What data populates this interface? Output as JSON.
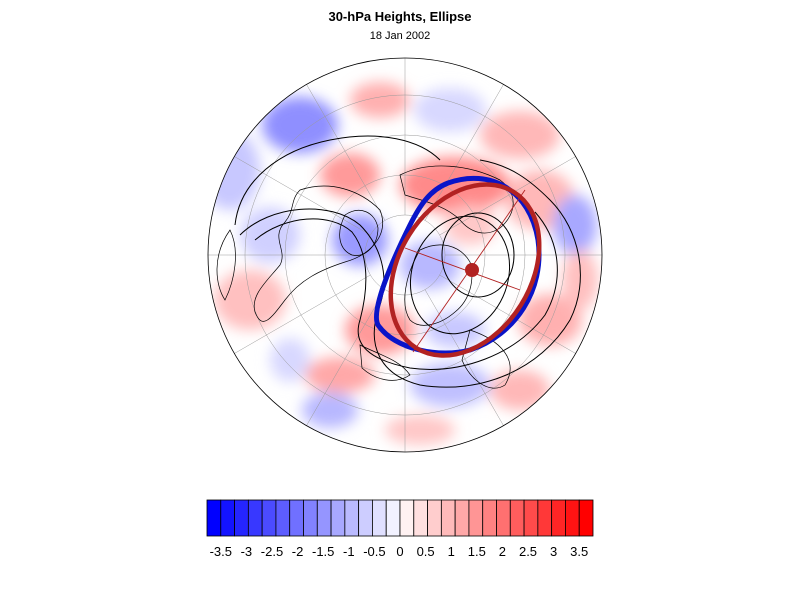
{
  "figure": {
    "title": "30-hPa Heights, Ellipse",
    "subtitle": "18 Jan 2002"
  },
  "map": {
    "projection": "north-polar-stereographic",
    "field_colors": {
      "negative": "#0000ff",
      "neutral": "#ffffff",
      "positive": "#ff0000"
    },
    "ellipse_colors": {
      "blue": "#0a14c8",
      "red": "#b22222"
    }
  },
  "colorbar": {
    "tick_labels": [
      "-3.5",
      "-3",
      "-2.5",
      "-2",
      "-1.5",
      "-1",
      "-0.5",
      "0",
      "0.5",
      "1",
      "1.5",
      "2",
      "2.5",
      "3",
      "3.5"
    ],
    "min": -3.5,
    "max": 3.5,
    "low_color": "#0000ff",
    "mid_color": "#ffffff",
    "high_color": "#ff0000"
  }
}
